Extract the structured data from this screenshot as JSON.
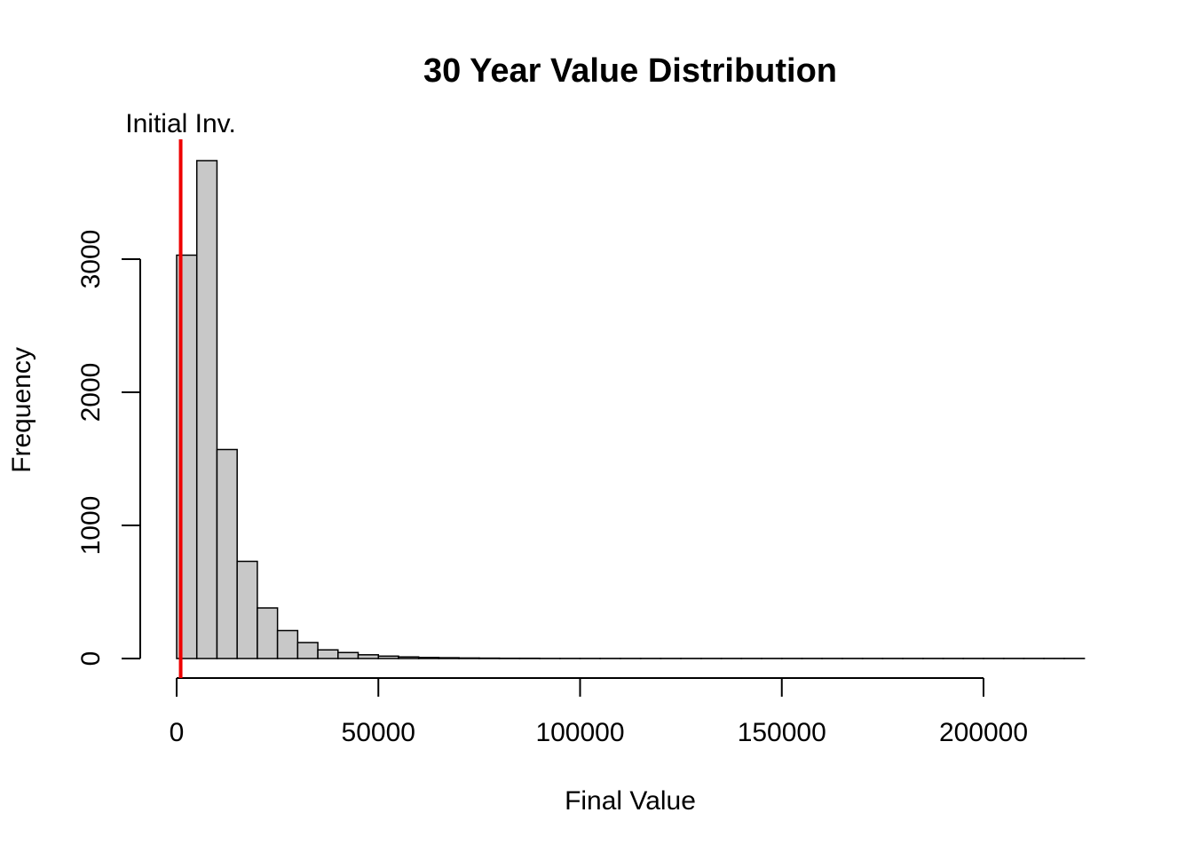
{
  "chart_data": {
    "type": "bar",
    "title": "30 Year Value Distribution",
    "xlabel": "Final Value",
    "ylabel": "Frequency",
    "bin_width": 5000,
    "bins_start": 0,
    "values": [
      3030,
      3740,
      1570,
      730,
      380,
      210,
      120,
      65,
      45,
      28,
      18,
      12,
      8,
      6,
      4,
      3,
      2,
      2,
      1,
      1,
      1,
      1,
      1,
      1,
      1,
      1,
      1,
      1,
      1,
      1,
      1,
      1,
      1,
      1,
      1,
      1,
      1,
      1,
      1,
      1,
      1,
      1,
      1,
      1,
      1
    ],
    "xlim": [
      0,
      225000
    ],
    "ylim": [
      0,
      3900
    ],
    "x_ticks": [
      0,
      50000,
      100000,
      150000,
      200000
    ],
    "x_tick_labels": [
      "0",
      "50000",
      "100000",
      "150000",
      "200000"
    ],
    "y_ticks": [
      0,
      1000,
      2000,
      3000
    ],
    "y_tick_labels": [
      "0",
      "1000",
      "2000",
      "3000"
    ],
    "reference_line": {
      "x": 1000,
      "label": "Initial Inv.",
      "color": "#ee0000"
    },
    "grid": false,
    "bar_fill": "#c8c8c8",
    "bar_stroke": "#000000"
  }
}
